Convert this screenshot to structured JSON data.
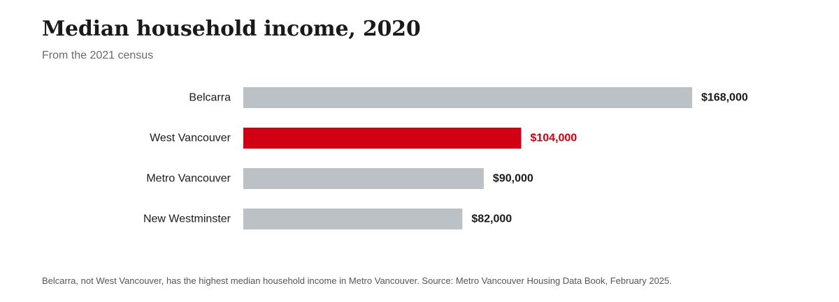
{
  "title": "Median household income, 2020",
  "subtitle": "From the 2021 census",
  "footnote": "Belcarra, not West Vancouver, has the highest median household income in Metro Vancouver. Source: Metro Vancouver Housing Data Book, February 2025.",
  "colors": {
    "default_bar": "#bcc1c5",
    "highlight_bar": "#d20014",
    "label_text": "#1a1a1a",
    "value_text": "#1a1a1a",
    "highlight_value_text": "#d20014"
  },
  "chart_data": {
    "type": "bar",
    "orientation": "horizontal",
    "categories": [
      "Belcarra",
      "West Vancouver",
      "Metro Vancouver",
      "New Westminster"
    ],
    "values": [
      168000,
      104000,
      90000,
      82000
    ],
    "value_labels": [
      "$168,000",
      "$104,000",
      "$90,000",
      "$82,000"
    ],
    "highlighted": [
      false,
      true,
      false,
      false
    ],
    "xlim": [
      0,
      168000
    ],
    "grid": false,
    "legend": "none"
  }
}
